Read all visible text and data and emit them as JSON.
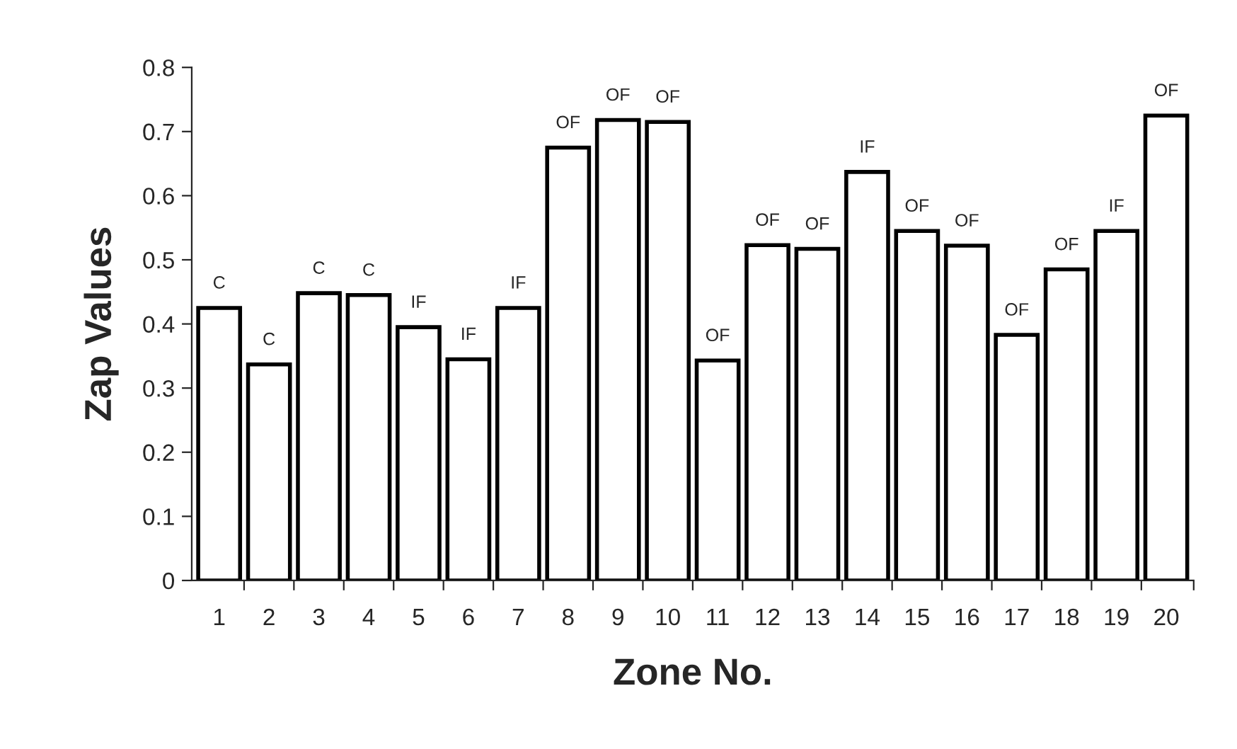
{
  "chart_data": {
    "type": "bar",
    "xlabel": "Zone No.",
    "ylabel": "Zap Values",
    "categories": [
      "1",
      "2",
      "3",
      "4",
      "5",
      "6",
      "7",
      "8",
      "9",
      "10",
      "11",
      "12",
      "13",
      "14",
      "15",
      "16",
      "17",
      "18",
      "19",
      "20"
    ],
    "values": [
      0.425,
      0.337,
      0.448,
      0.445,
      0.395,
      0.345,
      0.425,
      0.675,
      0.718,
      0.715,
      0.343,
      0.523,
      0.517,
      0.637,
      0.545,
      0.522,
      0.383,
      0.485,
      0.545,
      0.725
    ],
    "color": "#ffffff",
    "ylim": [
      0,
      0.8
    ],
    "yticks": [
      {
        "value": 0,
        "label": "0"
      },
      0.1,
      0.2,
      0.3,
      0.4,
      0.5,
      0.6,
      0.7,
      0.8
    ],
    "grid": false,
    "annotations": [
      {
        "text": "C",
        "x": "1",
        "y": 0.425
      },
      {
        "text": "C",
        "x": "2",
        "y": 0.337
      },
      {
        "text": "C",
        "x": "3",
        "y": 0.448
      },
      {
        "text": "C",
        "x": "4",
        "y": 0.445
      },
      {
        "text": "IF",
        "x": "5",
        "y": 0.395
      },
      {
        "text": "IF",
        "x": "6",
        "y": 0.345
      },
      {
        "text": "IF",
        "x": "7",
        "y": 0.425
      },
      {
        "text": "OF",
        "x": "8",
        "y": 0.675
      },
      {
        "text": "OF",
        "x": "9",
        "y": 0.718
      },
      {
        "text": "OF",
        "x": "10",
        "y": 0.715
      },
      {
        "text": "OF",
        "x": "11",
        "y": 0.343
      },
      {
        "text": "OF",
        "x": "12",
        "y": 0.523
      },
      {
        "text": "OF",
        "x": "13",
        "y": 0.517
      },
      {
        "text": "IF",
        "x": "14",
        "y": 0.637
      },
      {
        "text": "OF",
        "x": "15",
        "y": 0.545
      },
      {
        "text": "OF",
        "x": "16",
        "y": 0.522
      },
      {
        "text": "OF",
        "x": "17",
        "y": 0.383
      },
      {
        "text": "OF",
        "x": "18",
        "y": 0.485
      },
      {
        "text": "IF",
        "x": "19",
        "y": 0.545
      },
      {
        "text": "OF",
        "x": "20",
        "y": 0.725
      }
    ]
  }
}
